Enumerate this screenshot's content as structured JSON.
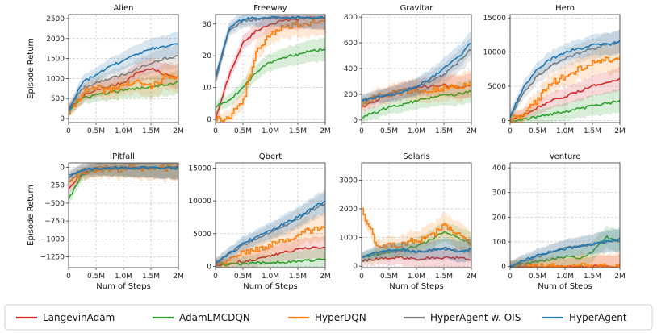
{
  "figure": {
    "legend": [
      {
        "name": "LangevinAdam",
        "color": "#d62728"
      },
      {
        "name": "AdamLMCDQN",
        "color": "#2ca02c"
      },
      {
        "name": "HyperDQN",
        "color": "#ff7f0e"
      },
      {
        "name": "HyperAgent w. OIS",
        "color": "#7f7f7f"
      },
      {
        "name": "HyperAgent",
        "color": "#1f77b4"
      }
    ]
  },
  "chart_data": [
    {
      "type": "line",
      "title": "Alien",
      "xlabel": "",
      "ylabel": "Episode Return",
      "xlim": [
        0,
        2
      ],
      "ylim": [
        -100,
        2600
      ],
      "xticks": [
        0,
        0.5,
        1,
        1.5,
        2
      ],
      "xticklabels": [
        "0",
        "0.5M",
        "1.0M",
        "1.5M",
        "2M"
      ],
      "yticks": [
        0,
        500,
        1000,
        1500,
        2000,
        2500
      ],
      "yticklabels": [
        "0",
        "500",
        "1000",
        "1500",
        "2000",
        "2500"
      ],
      "x": [
        0,
        0.25,
        0.5,
        0.75,
        1.0,
        1.25,
        1.5,
        1.75,
        2.0
      ],
      "series": [
        {
          "name": "LangevinAdam",
          "values": [
            200,
            550,
            700,
            800,
            900,
            1150,
            1250,
            1100,
            1050
          ]
        },
        {
          "name": "AdamLMCDQN",
          "values": [
            200,
            500,
            600,
            650,
            700,
            750,
            800,
            850,
            900
          ]
        },
        {
          "name": "HyperDQN",
          "values": [
            150,
            650,
            750,
            700,
            850,
            900,
            800,
            1050,
            950
          ]
        },
        {
          "name": "HyperAgent w. OIS",
          "values": [
            250,
            750,
            900,
            1000,
            1100,
            1250,
            1400,
            1500,
            1550
          ]
        },
        {
          "name": "HyperAgent",
          "values": [
            200,
            900,
            1100,
            1300,
            1450,
            1600,
            1750,
            1800,
            1850
          ]
        }
      ]
    },
    {
      "type": "line",
      "title": "Freeway",
      "xlabel": "",
      "ylabel": "",
      "xlim": [
        0,
        2
      ],
      "ylim": [
        -1,
        33
      ],
      "xticks": [
        0,
        0.5,
        1,
        1.5,
        2
      ],
      "xticklabels": [
        "0",
        "0.5M",
        "1.0M",
        "1.5M",
        "2M"
      ],
      "yticks": [
        0,
        10,
        20,
        30
      ],
      "yticklabels": [
        "0",
        "10",
        "20",
        "30"
      ],
      "x": [
        0,
        0.25,
        0.5,
        0.75,
        1.0,
        1.25,
        1.5,
        1.75,
        2.0
      ],
      "series": [
        {
          "name": "LangevinAdam",
          "values": [
            0,
            14,
            24,
            28,
            30,
            31,
            31.5,
            32,
            32
          ]
        },
        {
          "name": "AdamLMCDQN",
          "values": [
            4,
            6,
            10,
            15,
            18,
            19.5,
            20.5,
            21.5,
            22
          ]
        },
        {
          "name": "HyperDQN",
          "values": [
            0,
            1,
            6,
            22,
            27,
            29,
            30,
            30.5,
            31
          ]
        },
        {
          "name": "HyperAgent w. OIS",
          "values": [
            12,
            28,
            31,
            31.5,
            32,
            32,
            32,
            32,
            32
          ]
        },
        {
          "name": "HyperAgent",
          "values": [
            13,
            29,
            31.5,
            32,
            32,
            32,
            32,
            32,
            32
          ]
        }
      ]
    },
    {
      "type": "line",
      "title": "Gravitar",
      "xlabel": "",
      "ylabel": "",
      "xlim": [
        0,
        2
      ],
      "ylim": [
        -20,
        820
      ],
      "xticks": [
        0,
        0.5,
        1,
        1.5,
        2
      ],
      "xticklabels": [
        "0",
        "0.5M",
        "1.0M",
        "1.5M",
        "2M"
      ],
      "yticks": [
        0,
        200,
        400,
        600,
        800
      ],
      "yticklabels": [
        "0",
        "200",
        "400",
        "600",
        "800"
      ],
      "x": [
        0,
        0.25,
        0.5,
        0.75,
        1.0,
        1.25,
        1.5,
        1.75,
        2.0
      ],
      "series": [
        {
          "name": "LangevinAdam",
          "values": [
            100,
            150,
            200,
            230,
            250,
            260,
            270,
            250,
            280
          ]
        },
        {
          "name": "AdamLMCDQN",
          "values": [
            20,
            60,
            100,
            120,
            150,
            170,
            190,
            200,
            220
          ]
        },
        {
          "name": "HyperDQN",
          "values": [
            120,
            180,
            200,
            220,
            240,
            230,
            250,
            260,
            270
          ]
        },
        {
          "name": "HyperAgent w. OIS",
          "values": [
            150,
            180,
            200,
            230,
            260,
            300,
            350,
            450,
            550
          ]
        },
        {
          "name": "HyperAgent",
          "values": [
            150,
            170,
            190,
            220,
            260,
            320,
            400,
            480,
            600
          ]
        }
      ]
    },
    {
      "type": "line",
      "title": "Hero",
      "xlabel": "",
      "ylabel": "",
      "xlim": [
        0,
        2
      ],
      "ylim": [
        -300,
        15500
      ],
      "xticks": [
        0,
        0.5,
        1,
        1.5,
        2
      ],
      "xticklabels": [
        "0",
        "0.5M",
        "1.0M",
        "1.5M",
        "2M"
      ],
      "yticks": [
        0,
        5000,
        10000,
        15000
      ],
      "yticklabels": [
        "0",
        "5000",
        "10000",
        "15000"
      ],
      "x": [
        0,
        0.25,
        0.5,
        0.75,
        1.0,
        1.25,
        1.5,
        1.75,
        2.0
      ],
      "series": [
        {
          "name": "LangevinAdam",
          "values": [
            0,
            800,
            1800,
            2800,
            3500,
            4200,
            5000,
            5700,
            6000
          ]
        },
        {
          "name": "AdamLMCDQN",
          "values": [
            0,
            200,
            500,
            900,
            1300,
            1700,
            2100,
            2500,
            2800
          ]
        },
        {
          "name": "HyperDQN",
          "values": [
            0,
            1000,
            3000,
            5500,
            6500,
            7500,
            8500,
            9000,
            9000
          ]
        },
        {
          "name": "HyperAgent w. OIS",
          "values": [
            500,
            4000,
            6500,
            8000,
            9000,
            9800,
            10500,
            11000,
            11500
          ]
        },
        {
          "name": "HyperAgent",
          "values": [
            500,
            5000,
            7500,
            9000,
            10000,
            10500,
            11000,
            11300,
            11500
          ]
        }
      ]
    },
    {
      "type": "line",
      "title": "Pitfall",
      "xlabel": "Num of Steps",
      "ylabel": "Episode Return",
      "xlim": [
        0,
        2
      ],
      "ylim": [
        -1400,
        60
      ],
      "xticks": [
        0,
        0.5,
        1,
        1.5,
        2
      ],
      "xticklabels": [
        "0",
        "0.5M",
        "1.0M",
        "1.5M",
        "2M"
      ],
      "yticks": [
        0,
        -250,
        -500,
        -750,
        -1000,
        -1250
      ],
      "yticklabels": [
        "0",
        "−250",
        "−500",
        "−750",
        "−1000",
        "−1250"
      ],
      "x": [
        0,
        0.25,
        0.5,
        0.75,
        1.0,
        1.25,
        1.5,
        1.75,
        2.0
      ],
      "series": [
        {
          "name": "LangevinAdam",
          "values": [
            -300,
            -80,
            -30,
            -20,
            -15,
            -10,
            -10,
            -10,
            -10
          ]
        },
        {
          "name": "AdamLMCDQN",
          "values": [
            -450,
            -100,
            -30,
            -20,
            -15,
            -15,
            -10,
            -10,
            -10
          ]
        },
        {
          "name": "HyperDQN",
          "values": [
            -200,
            -60,
            -30,
            -20,
            -20,
            -15,
            -10,
            -15,
            -10
          ]
        },
        {
          "name": "HyperAgent w. OIS",
          "values": [
            -100,
            -40,
            -20,
            -15,
            -10,
            -10,
            -10,
            -10,
            -10
          ]
        },
        {
          "name": "HyperAgent",
          "values": [
            -150,
            -40,
            -20,
            -15,
            -10,
            -10,
            -10,
            -10,
            -10
          ]
        }
      ]
    },
    {
      "type": "line",
      "title": "Qbert",
      "xlabel": "Num of Steps",
      "ylabel": "",
      "xlim": [
        0,
        2
      ],
      "ylim": [
        -200,
        15800
      ],
      "xticks": [
        0,
        0.5,
        1,
        1.5,
        2
      ],
      "xticklabels": [
        "0",
        "0.5M",
        "1.0M",
        "1.5M",
        "2M"
      ],
      "yticks": [
        0,
        5000,
        10000,
        15000
      ],
      "yticklabels": [
        "0",
        "5000",
        "10000",
        "15000"
      ],
      "x": [
        0,
        0.25,
        0.5,
        0.75,
        1.0,
        1.25,
        1.5,
        1.75,
        2.0
      ],
      "series": [
        {
          "name": "LangevinAdam",
          "values": [
            200,
            400,
            800,
            1100,
            1600,
            2200,
            2600,
            2800,
            2900
          ]
        },
        {
          "name": "AdamLMCDQN",
          "values": [
            200,
            300,
            400,
            500,
            600,
            700,
            800,
            900,
            1100
          ]
        },
        {
          "name": "HyperDQN",
          "values": [
            300,
            1200,
            2000,
            2600,
            3200,
            4000,
            4800,
            5600,
            6000
          ]
        },
        {
          "name": "HyperAgent w. OIS",
          "values": [
            400,
            2000,
            3200,
            4200,
            5200,
            6200,
            7200,
            8500,
            9500
          ]
        },
        {
          "name": "HyperAgent",
          "values": [
            400,
            2000,
            3500,
            4500,
            5500,
            6500,
            7500,
            8800,
            10000
          ]
        }
      ]
    },
    {
      "type": "line",
      "title": "Solaris",
      "xlabel": "Num of Steps",
      "ylabel": "",
      "xlim": [
        0,
        2
      ],
      "ylim": [
        -50,
        3600
      ],
      "xticks": [
        0,
        0.5,
        1,
        1.5,
        2
      ],
      "xticklabels": [
        "0",
        "0.5M",
        "1.0M",
        "1.5M",
        "2M"
      ],
      "yticks": [
        0,
        1000,
        2000,
        3000
      ],
      "yticklabels": [
        "0",
        "1000",
        "2000",
        "3000"
      ],
      "x": [
        0,
        0.25,
        0.5,
        0.75,
        1.0,
        1.25,
        1.5,
        1.75,
        2.0
      ],
      "series": [
        {
          "name": "LangevinAdam",
          "values": [
            200,
            250,
            300,
            300,
            250,
            300,
            300,
            300,
            250
          ]
        },
        {
          "name": "AdamLMCDQN",
          "values": [
            300,
            400,
            500,
            600,
            700,
            900,
            1200,
            1000,
            800
          ]
        },
        {
          "name": "HyperDQN",
          "values": [
            2000,
            800,
            700,
            800,
            900,
            1000,
            1500,
            1100,
            800
          ]
        },
        {
          "name": "HyperAgent w. OIS",
          "values": [
            300,
            450,
            500,
            550,
            500,
            550,
            600,
            550,
            500
          ]
        },
        {
          "name": "HyperAgent",
          "values": [
            300,
            500,
            550,
            600,
            500,
            550,
            650,
            500,
            600
          ]
        }
      ]
    },
    {
      "type": "line",
      "title": "Venture",
      "xlabel": "Num of Steps",
      "ylabel": "",
      "xlim": [
        0,
        2
      ],
      "ylim": [
        -5,
        420
      ],
      "xticks": [
        0,
        0.5,
        1,
        1.5,
        2
      ],
      "xticklabels": [
        "0",
        "0.5M",
        "1.0M",
        "1.5M",
        "2M"
      ],
      "yticks": [
        0,
        100,
        200,
        300,
        400
      ],
      "yticklabels": [
        "0",
        "100",
        "200",
        "300",
        "400"
      ],
      "x": [
        0,
        0.25,
        0.5,
        0.75,
        1.0,
        1.25,
        1.5,
        1.75,
        2.0
      ],
      "series": [
        {
          "name": "LangevinAdam",
          "values": [
            0,
            0,
            0,
            0,
            0,
            0,
            0,
            0,
            0
          ]
        },
        {
          "name": "AdamLMCDQN",
          "values": [
            0,
            10,
            20,
            30,
            40,
            30,
            60,
            120,
            100
          ]
        },
        {
          "name": "HyperDQN",
          "values": [
            0,
            0,
            0,
            0,
            0,
            0,
            0,
            0,
            0
          ]
        },
        {
          "name": "HyperAgent w. OIS",
          "values": [
            0,
            20,
            40,
            60,
            80,
            80,
            90,
            100,
            100
          ]
        },
        {
          "name": "HyperAgent",
          "values": [
            0,
            25,
            45,
            60,
            70,
            80,
            90,
            100,
            110
          ]
        }
      ]
    }
  ]
}
